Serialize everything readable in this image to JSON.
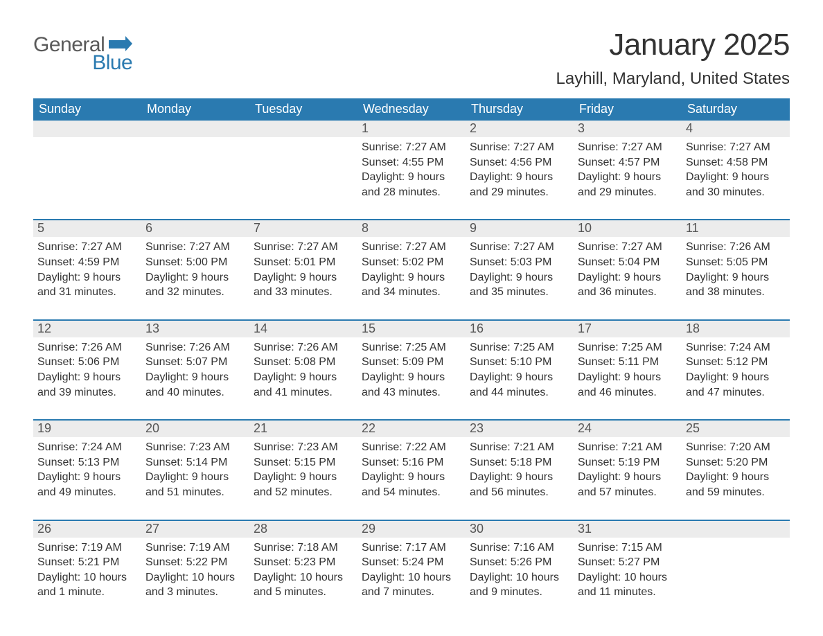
{
  "logo": {
    "general": "General",
    "blue": "Blue",
    "flag_color": "#2a7ab0"
  },
  "title": "January 2025",
  "location": "Layhill, Maryland, United States",
  "colors": {
    "header_bg": "#2a7ab0",
    "header_text": "#ffffff",
    "daynum_bg": "#ececec",
    "daynum_text": "#555555",
    "body_text": "#333333",
    "row_border": "#2a7ab0",
    "page_bg": "#ffffff"
  },
  "day_headers": [
    "Sunday",
    "Monday",
    "Tuesday",
    "Wednesday",
    "Thursday",
    "Friday",
    "Saturday"
  ],
  "weeks": [
    [
      {
        "num": "",
        "lines": []
      },
      {
        "num": "",
        "lines": []
      },
      {
        "num": "",
        "lines": []
      },
      {
        "num": "1",
        "lines": [
          "Sunrise: 7:27 AM",
          "Sunset: 4:55 PM",
          "Daylight: 9 hours and 28 minutes."
        ]
      },
      {
        "num": "2",
        "lines": [
          "Sunrise: 7:27 AM",
          "Sunset: 4:56 PM",
          "Daylight: 9 hours and 29 minutes."
        ]
      },
      {
        "num": "3",
        "lines": [
          "Sunrise: 7:27 AM",
          "Sunset: 4:57 PM",
          "Daylight: 9 hours and 29 minutes."
        ]
      },
      {
        "num": "4",
        "lines": [
          "Sunrise: 7:27 AM",
          "Sunset: 4:58 PM",
          "Daylight: 9 hours and 30 minutes."
        ]
      }
    ],
    [
      {
        "num": "5",
        "lines": [
          "Sunrise: 7:27 AM",
          "Sunset: 4:59 PM",
          "Daylight: 9 hours and 31 minutes."
        ]
      },
      {
        "num": "6",
        "lines": [
          "Sunrise: 7:27 AM",
          "Sunset: 5:00 PM",
          "Daylight: 9 hours and 32 minutes."
        ]
      },
      {
        "num": "7",
        "lines": [
          "Sunrise: 7:27 AM",
          "Sunset: 5:01 PM",
          "Daylight: 9 hours and 33 minutes."
        ]
      },
      {
        "num": "8",
        "lines": [
          "Sunrise: 7:27 AM",
          "Sunset: 5:02 PM",
          "Daylight: 9 hours and 34 minutes."
        ]
      },
      {
        "num": "9",
        "lines": [
          "Sunrise: 7:27 AM",
          "Sunset: 5:03 PM",
          "Daylight: 9 hours and 35 minutes."
        ]
      },
      {
        "num": "10",
        "lines": [
          "Sunrise: 7:27 AM",
          "Sunset: 5:04 PM",
          "Daylight: 9 hours and 36 minutes."
        ]
      },
      {
        "num": "11",
        "lines": [
          "Sunrise: 7:26 AM",
          "Sunset: 5:05 PM",
          "Daylight: 9 hours and 38 minutes."
        ]
      }
    ],
    [
      {
        "num": "12",
        "lines": [
          "Sunrise: 7:26 AM",
          "Sunset: 5:06 PM",
          "Daylight: 9 hours and 39 minutes."
        ]
      },
      {
        "num": "13",
        "lines": [
          "Sunrise: 7:26 AM",
          "Sunset: 5:07 PM",
          "Daylight: 9 hours and 40 minutes."
        ]
      },
      {
        "num": "14",
        "lines": [
          "Sunrise: 7:26 AM",
          "Sunset: 5:08 PM",
          "Daylight: 9 hours and 41 minutes."
        ]
      },
      {
        "num": "15",
        "lines": [
          "Sunrise: 7:25 AM",
          "Sunset: 5:09 PM",
          "Daylight: 9 hours and 43 minutes."
        ]
      },
      {
        "num": "16",
        "lines": [
          "Sunrise: 7:25 AM",
          "Sunset: 5:10 PM",
          "Daylight: 9 hours and 44 minutes."
        ]
      },
      {
        "num": "17",
        "lines": [
          "Sunrise: 7:25 AM",
          "Sunset: 5:11 PM",
          "Daylight: 9 hours and 46 minutes."
        ]
      },
      {
        "num": "18",
        "lines": [
          "Sunrise: 7:24 AM",
          "Sunset: 5:12 PM",
          "Daylight: 9 hours and 47 minutes."
        ]
      }
    ],
    [
      {
        "num": "19",
        "lines": [
          "Sunrise: 7:24 AM",
          "Sunset: 5:13 PM",
          "Daylight: 9 hours and 49 minutes."
        ]
      },
      {
        "num": "20",
        "lines": [
          "Sunrise: 7:23 AM",
          "Sunset: 5:14 PM",
          "Daylight: 9 hours and 51 minutes."
        ]
      },
      {
        "num": "21",
        "lines": [
          "Sunrise: 7:23 AM",
          "Sunset: 5:15 PM",
          "Daylight: 9 hours and 52 minutes."
        ]
      },
      {
        "num": "22",
        "lines": [
          "Sunrise: 7:22 AM",
          "Sunset: 5:16 PM",
          "Daylight: 9 hours and 54 minutes."
        ]
      },
      {
        "num": "23",
        "lines": [
          "Sunrise: 7:21 AM",
          "Sunset: 5:18 PM",
          "Daylight: 9 hours and 56 minutes."
        ]
      },
      {
        "num": "24",
        "lines": [
          "Sunrise: 7:21 AM",
          "Sunset: 5:19 PM",
          "Daylight: 9 hours and 57 minutes."
        ]
      },
      {
        "num": "25",
        "lines": [
          "Sunrise: 7:20 AM",
          "Sunset: 5:20 PM",
          "Daylight: 9 hours and 59 minutes."
        ]
      }
    ],
    [
      {
        "num": "26",
        "lines": [
          "Sunrise: 7:19 AM",
          "Sunset: 5:21 PM",
          "Daylight: 10 hours and 1 minute."
        ]
      },
      {
        "num": "27",
        "lines": [
          "Sunrise: 7:19 AM",
          "Sunset: 5:22 PM",
          "Daylight: 10 hours and 3 minutes."
        ]
      },
      {
        "num": "28",
        "lines": [
          "Sunrise: 7:18 AM",
          "Sunset: 5:23 PM",
          "Daylight: 10 hours and 5 minutes."
        ]
      },
      {
        "num": "29",
        "lines": [
          "Sunrise: 7:17 AM",
          "Sunset: 5:24 PM",
          "Daylight: 10 hours and 7 minutes."
        ]
      },
      {
        "num": "30",
        "lines": [
          "Sunrise: 7:16 AM",
          "Sunset: 5:26 PM",
          "Daylight: 10 hours and 9 minutes."
        ]
      },
      {
        "num": "31",
        "lines": [
          "Sunrise: 7:15 AM",
          "Sunset: 5:27 PM",
          "Daylight: 10 hours and 11 minutes."
        ]
      },
      {
        "num": "",
        "lines": []
      }
    ]
  ]
}
